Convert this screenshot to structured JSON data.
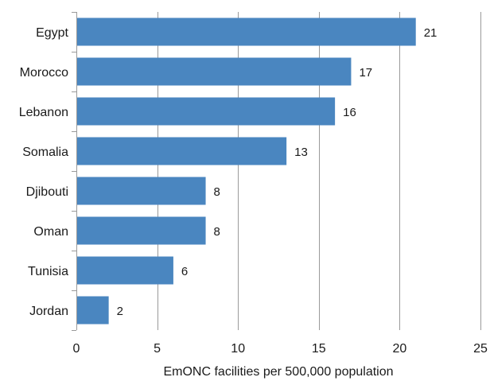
{
  "chart_data": {
    "type": "bar",
    "orientation": "horizontal",
    "categories": [
      "Egypt",
      "Morocco",
      "Lebanon",
      "Somalia",
      "Djibouti",
      "Oman",
      "Tunisia",
      "Jordan"
    ],
    "values": [
      21,
      17,
      16,
      13,
      8,
      8,
      6,
      2
    ],
    "value_labels": [
      "21",
      "17",
      "16",
      "13",
      "8",
      "8",
      "6",
      "2"
    ],
    "title": "",
    "xlabel": "EmONC facilities per 500,000 population",
    "ylabel": "",
    "xlim": [
      0,
      25
    ],
    "xticks": [
      0,
      5,
      10,
      15,
      20,
      25
    ],
    "xtick_labels": [
      "0",
      "5",
      "10",
      "15",
      "20",
      "25"
    ],
    "grid": "vertical",
    "bar_color": "#4a86c0"
  }
}
